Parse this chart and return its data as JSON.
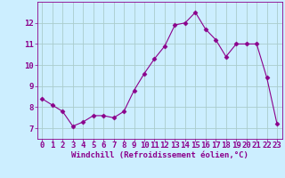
{
  "x": [
    0,
    1,
    2,
    3,
    4,
    5,
    6,
    7,
    8,
    9,
    10,
    11,
    12,
    13,
    14,
    15,
    16,
    17,
    18,
    19,
    20,
    21,
    22,
    23
  ],
  "y": [
    8.4,
    8.1,
    7.8,
    7.1,
    7.3,
    7.6,
    7.6,
    7.5,
    7.8,
    8.8,
    9.6,
    10.3,
    10.9,
    11.9,
    12.0,
    12.5,
    11.7,
    11.2,
    10.4,
    11.0,
    11.0,
    11.0,
    9.4,
    7.2
  ],
  "line_color": "#8b008b",
  "marker": "D",
  "marker_size": 2.5,
  "bg_color": "#cceeff",
  "grid_color": "#aacccc",
  "xlabel": "Windchill (Refroidissement éolien,°C)",
  "xlabel_fontsize": 6.5,
  "tick_fontsize": 6.5,
  "ylim": [
    6.5,
    13.0
  ],
  "xlim": [
    -0.5,
    23.5
  ],
  "yticks": [
    7,
    8,
    9,
    10,
    11,
    12
  ],
  "xticks": [
    0,
    1,
    2,
    3,
    4,
    5,
    6,
    7,
    8,
    9,
    10,
    11,
    12,
    13,
    14,
    15,
    16,
    17,
    18,
    19,
    20,
    21,
    22,
    23
  ]
}
